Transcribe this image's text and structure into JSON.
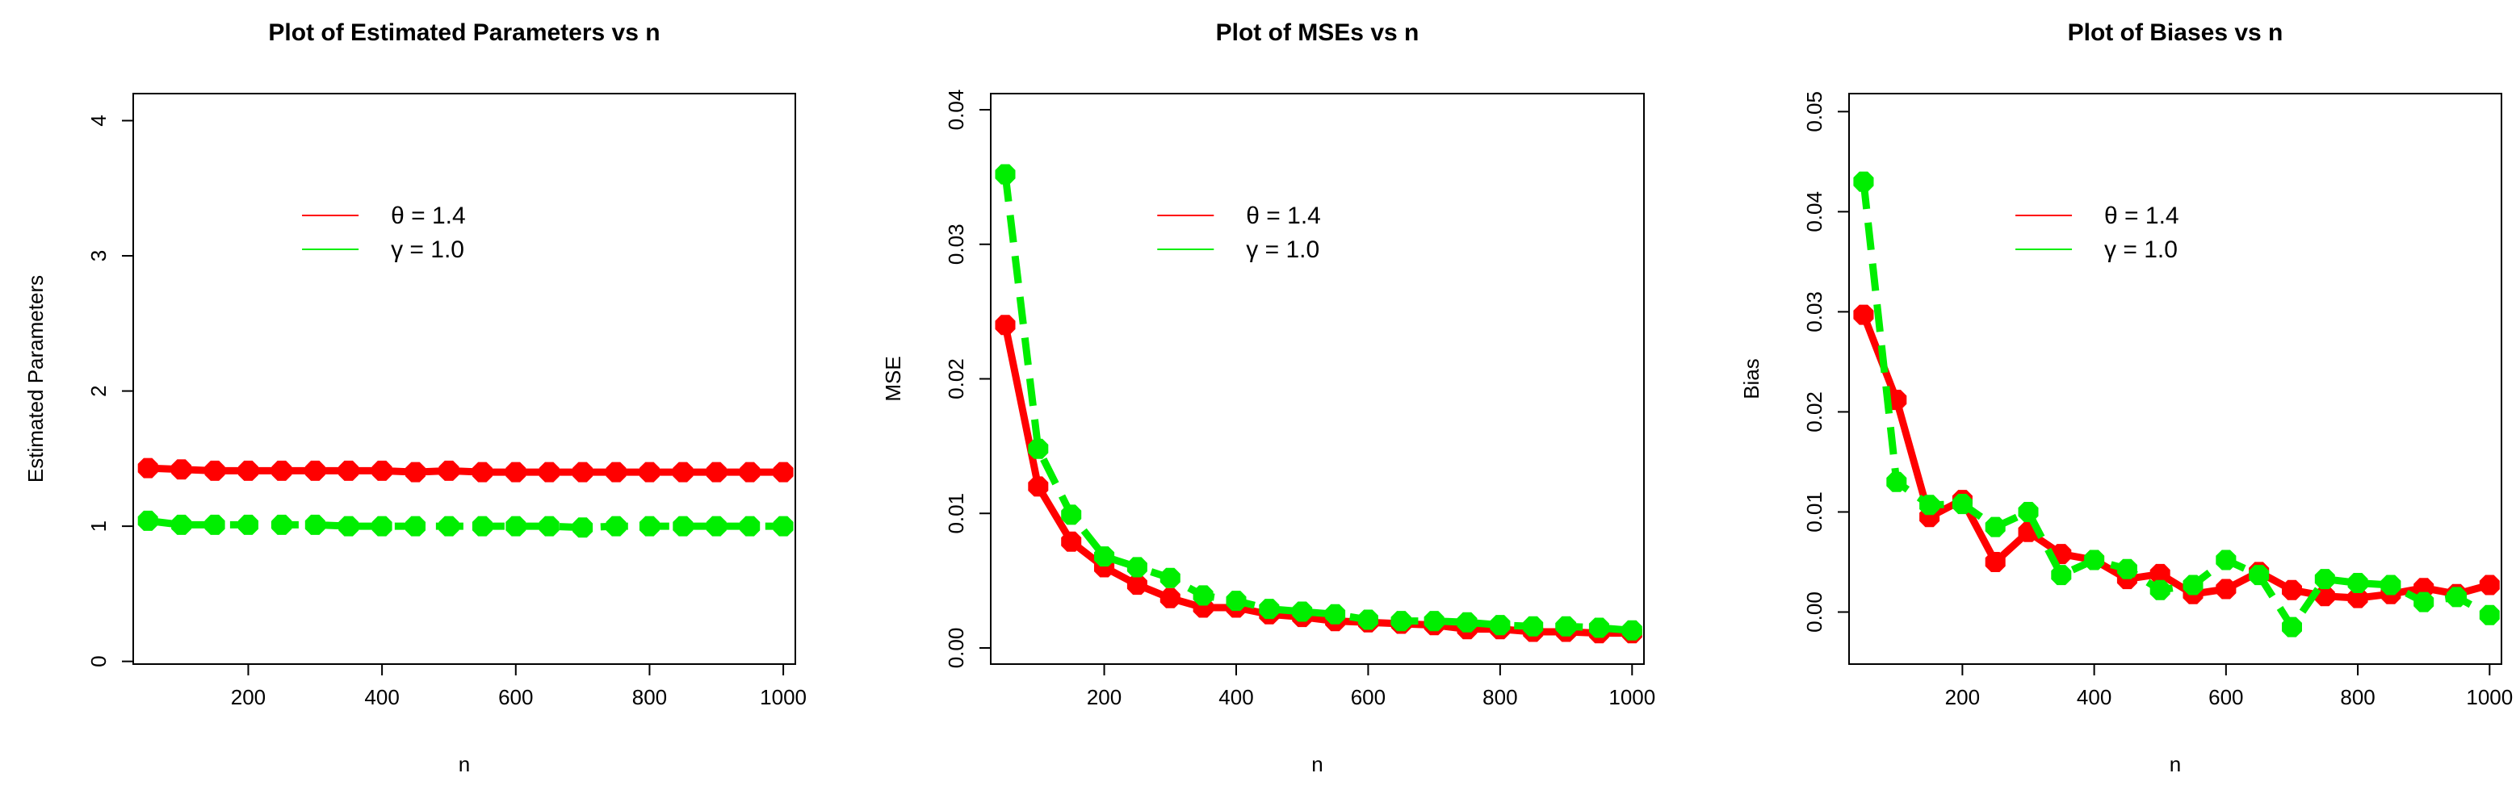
{
  "chart_data": [
    {
      "type": "line",
      "title": "Plot of Estimated Parameters vs n",
      "xlabel": "n",
      "ylabel": "Estimated Parameters",
      "xlim": [
        28,
        1018
      ],
      "ylim": [
        -0.02,
        4.2
      ],
      "xticks": [
        200,
        400,
        600,
        800,
        1000
      ],
      "xtick_labels": [
        "200",
        "400",
        "600",
        "800",
        "1000"
      ],
      "yticks": [
        0,
        1,
        2,
        3,
        4
      ],
      "ytick_labels": [
        "0",
        "1",
        "2",
        "3",
        "4"
      ],
      "legend": [
        "θ = 1.4",
        "γ = 1.0"
      ],
      "x": [
        50,
        100,
        150,
        200,
        250,
        300,
        350,
        400,
        450,
        500,
        550,
        600,
        650,
        700,
        750,
        800,
        850,
        900,
        950,
        1000
      ],
      "series": [
        {
          "name": "θ = 1.4",
          "color": "#ff0000",
          "dash": "solid",
          "values": [
            1.43,
            1.42,
            1.41,
            1.41,
            1.41,
            1.41,
            1.41,
            1.41,
            1.4,
            1.41,
            1.4,
            1.4,
            1.4,
            1.4,
            1.4,
            1.4,
            1.4,
            1.4,
            1.4,
            1.4
          ]
        },
        {
          "name": "γ = 1.0",
          "color": "#00ee00",
          "dash": "dashed",
          "values": [
            1.04,
            1.01,
            1.01,
            1.01,
            1.01,
            1.01,
            1.0,
            1.0,
            1.0,
            1.0,
            1.0,
            1.0,
            1.0,
            0.99,
            1.0,
            1.0,
            1.0,
            1.0,
            1.0,
            1.0
          ]
        }
      ]
    },
    {
      "type": "line",
      "title": "Plot of MSEs vs n",
      "xlabel": "n",
      "ylabel": "MSE",
      "xlim": [
        28,
        1018
      ],
      "ylim": [
        -0.0012,
        0.0412
      ],
      "xticks": [
        200,
        400,
        600,
        800,
        1000
      ],
      "xtick_labels": [
        "200",
        "400",
        "600",
        "800",
        "1000"
      ],
      "yticks": [
        0.0,
        0.01,
        0.02,
        0.03,
        0.04
      ],
      "ytick_labels": [
        "0.00",
        "0.01",
        "0.02",
        "0.03",
        "0.04"
      ],
      "legend": [
        "θ = 1.4",
        "γ = 1.0"
      ],
      "x": [
        50,
        100,
        150,
        200,
        250,
        300,
        350,
        400,
        450,
        500,
        550,
        600,
        650,
        700,
        750,
        800,
        850,
        900,
        950,
        1000
      ],
      "series": [
        {
          "name": "θ = 1.4",
          "color": "#ff0000",
          "dash": "solid",
          "values": [
            0.024,
            0.012,
            0.0079,
            0.006,
            0.0047,
            0.0037,
            0.003,
            0.003,
            0.0025,
            0.0023,
            0.002,
            0.0019,
            0.0018,
            0.0017,
            0.0014,
            0.0014,
            0.0012,
            0.0012,
            0.0011,
            0.0011
          ]
        },
        {
          "name": "γ = 1.0",
          "color": "#00ee00",
          "dash": "dashed",
          "values": [
            0.0352,
            0.0148,
            0.0099,
            0.0068,
            0.006,
            0.0052,
            0.0039,
            0.0035,
            0.0029,
            0.0027,
            0.0025,
            0.0021,
            0.002,
            0.002,
            0.0019,
            0.0017,
            0.0016,
            0.0016,
            0.0015,
            0.0013
          ]
        }
      ]
    },
    {
      "type": "line",
      "title": "Plot of Biases vs n",
      "xlabel": "n",
      "ylabel": "Bias",
      "xlim": [
        28,
        1018
      ],
      "ylim": [
        -0.0052,
        0.0518
      ],
      "xticks": [
        200,
        400,
        600,
        800,
        1000
      ],
      "xtick_labels": [
        "200",
        "400",
        "600",
        "800",
        "1000"
      ],
      "yticks": [
        0.0,
        0.01,
        0.02,
        0.03,
        0.04,
        0.05
      ],
      "ytick_labels": [
        "0.00",
        "0.01",
        "0.02",
        "0.03",
        "0.04",
        "0.05"
      ],
      "legend": [
        "θ = 1.4",
        "γ = 1.0"
      ],
      "x": [
        50,
        100,
        150,
        200,
        250,
        300,
        350,
        400,
        450,
        500,
        550,
        600,
        650,
        700,
        750,
        800,
        850,
        900,
        950,
        1000
      ],
      "series": [
        {
          "name": "θ = 1.4",
          "color": "#ff0000",
          "dash": "solid",
          "values": [
            0.0297,
            0.0212,
            0.0095,
            0.0112,
            0.005,
            0.008,
            0.0058,
            0.0052,
            0.0033,
            0.0038,
            0.0018,
            0.0023,
            0.004,
            0.0022,
            0.0016,
            0.0014,
            0.0018,
            0.0024,
            0.0018,
            0.0027
          ]
        },
        {
          "name": "γ = 1.0",
          "color": "#00ee00",
          "dash": "dashed",
          "values": [
            0.043,
            0.013,
            0.0107,
            0.0108,
            0.0085,
            0.01,
            0.0037,
            0.0052,
            0.0043,
            0.0022,
            0.0027,
            0.0052,
            0.0037,
            -0.0015,
            0.0033,
            0.0029,
            0.0027,
            0.001,
            0.0015,
            -0.0003
          ]
        }
      ]
    }
  ]
}
